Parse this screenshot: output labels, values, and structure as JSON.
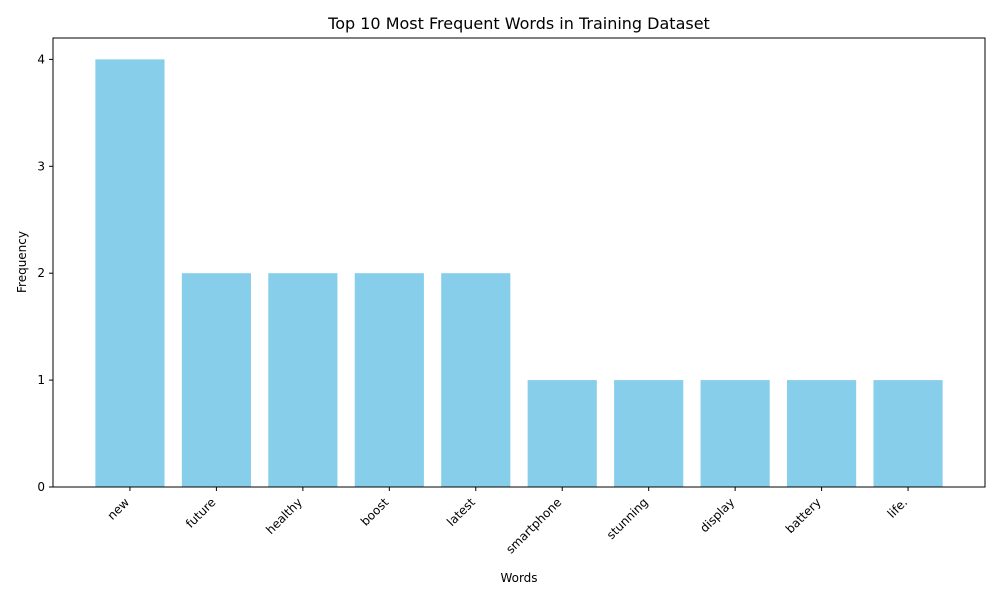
{
  "chart_data": {
    "type": "bar",
    "title": "Top 10 Most Frequent Words in Training Dataset",
    "xlabel": "Words",
    "ylabel": "Frequency",
    "categories": [
      "new",
      "future",
      "healthy",
      "boost",
      "latest",
      "smartphone",
      "stunning",
      "display",
      "battery",
      "life."
    ],
    "values": [
      4,
      2,
      2,
      2,
      2,
      1,
      1,
      1,
      1,
      1
    ],
    "ylim": [
      0,
      4.2
    ],
    "yticks": [
      0,
      1,
      2,
      3,
      4
    ],
    "bar_color": "#87ceeb",
    "grid": false,
    "legend": "none"
  }
}
